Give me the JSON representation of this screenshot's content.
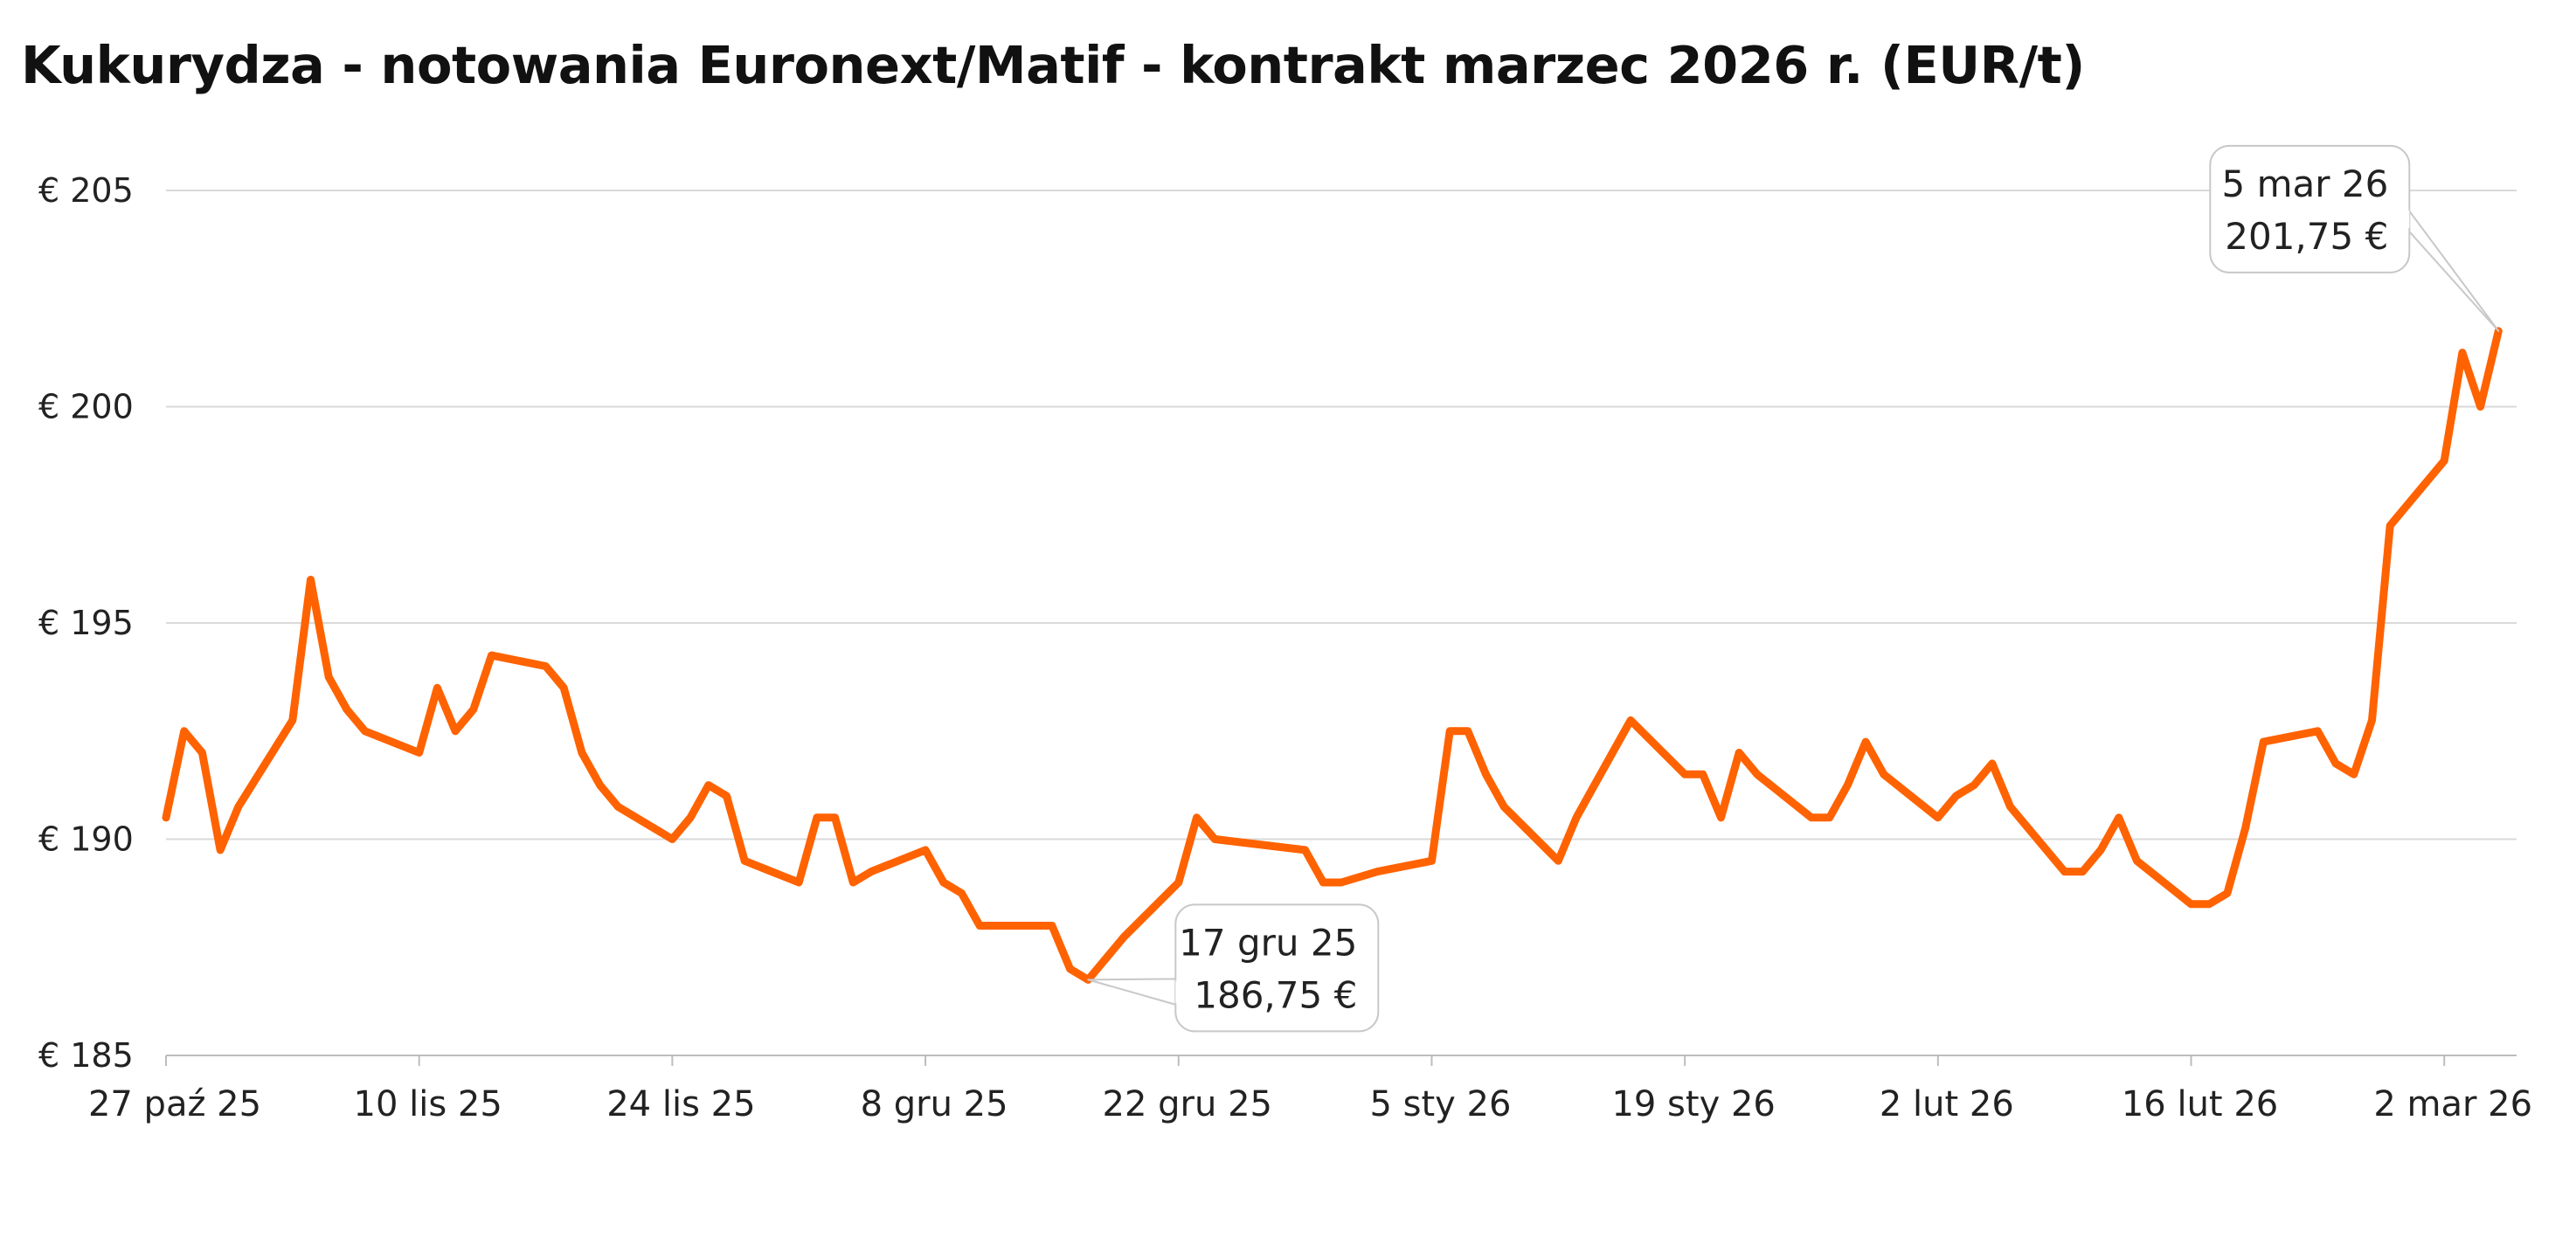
{
  "chart_data": {
    "type": "line",
    "title": "Kukurydza - notowania Euronext/Matif - kontrakt marzec 2026 r. (EUR/t)",
    "xlabel": "",
    "ylabel": "",
    "ylim": [
      185,
      205
    ],
    "yticks": [
      205,
      200,
      195,
      190,
      185
    ],
    "ytick_labels": [
      "€ 205",
      "€ 200",
      "€ 195",
      "€ 190",
      "€ 185"
    ],
    "xlim": [
      "2025-10-27",
      "2026-03-06"
    ],
    "xticks": [
      "2025-10-27",
      "2025-11-10",
      "2025-11-24",
      "2025-12-08",
      "2025-12-22",
      "2026-01-05",
      "2026-01-19",
      "2026-02-02",
      "2026-02-16",
      "2026-03-02"
    ],
    "xtick_labels": [
      "27 paź 25",
      "10 lis 25",
      "24 lis 25",
      "8 gru 25",
      "22 gru 25",
      "5 sty 26",
      "19 sty 26",
      "2 lut 26",
      "16 lut 26",
      "2 mar 26"
    ],
    "grid": true,
    "legend": "none",
    "colors": {
      "line": "#ff6200",
      "grid": "#d9d9d9",
      "axis": "#bdbdbd",
      "callout_border": "#c8c8c8"
    },
    "series": [
      {
        "x": [
          "2025-10-27",
          "2025-10-28",
          "2025-10-29",
          "2025-10-30",
          "2025-10-31",
          "2025-11-03",
          "2025-11-04",
          "2025-11-05",
          "2025-11-06",
          "2025-11-07",
          "2025-11-10",
          "2025-11-11",
          "2025-11-12",
          "2025-11-13",
          "2025-11-14",
          "2025-11-17",
          "2025-11-18",
          "2025-11-19",
          "2025-11-20",
          "2025-11-21",
          "2025-11-24",
          "2025-11-25",
          "2025-11-26",
          "2025-11-27",
          "2025-11-28",
          "2025-12-01",
          "2025-12-02",
          "2025-12-03",
          "2025-12-04",
          "2025-12-05",
          "2025-12-08",
          "2025-12-09",
          "2025-12-10",
          "2025-12-11",
          "2025-12-12",
          "2025-12-15",
          "2025-12-16",
          "2025-12-17",
          "2025-12-19",
          "2025-12-22",
          "2025-12-23",
          "2025-12-24",
          "2025-12-29",
          "2025-12-30",
          "2025-12-31",
          "2026-01-02",
          "2026-01-05",
          "2026-01-06",
          "2026-01-07",
          "2026-01-08",
          "2026-01-09",
          "2026-01-12",
          "2026-01-13",
          "2026-01-14",
          "2026-01-15",
          "2026-01-16",
          "2026-01-19",
          "2026-01-20",
          "2026-01-21",
          "2026-01-22",
          "2026-01-23",
          "2026-01-26",
          "2026-01-27",
          "2026-01-28",
          "2026-01-29",
          "2026-01-30",
          "2026-02-02",
          "2026-02-03",
          "2026-02-04",
          "2026-02-05",
          "2026-02-06",
          "2026-02-09",
          "2026-02-10",
          "2026-02-11",
          "2026-02-12",
          "2026-02-13",
          "2026-02-16",
          "2026-02-17",
          "2026-02-18",
          "2026-02-19",
          "2026-02-20",
          "2026-02-23",
          "2026-02-24",
          "2026-02-25",
          "2026-02-26",
          "2026-02-27",
          "2026-03-02",
          "2026-03-03",
          "2026-03-04",
          "2026-03-05"
        ],
        "values": [
          190.5,
          192.5,
          192.0,
          189.75,
          190.75,
          192.75,
          196.0,
          193.75,
          193.0,
          192.5,
          192.0,
          193.5,
          192.5,
          193.0,
          194.25,
          194.0,
          193.5,
          192.0,
          191.25,
          190.75,
          190.0,
          190.5,
          191.25,
          191.0,
          189.5,
          189.0,
          190.5,
          190.5,
          189.0,
          189.25,
          189.75,
          189.0,
          188.75,
          188.0,
          188.0,
          188.0,
          187.0,
          186.75,
          187.75,
          189.0,
          190.5,
          190.0,
          189.75,
          189.0,
          189.0,
          189.25,
          189.5,
          192.5,
          192.5,
          191.5,
          190.75,
          189.5,
          190.5,
          191.25,
          192.0,
          192.75,
          191.5,
          191.5,
          190.5,
          192.0,
          191.5,
          190.5,
          190.5,
          191.25,
          192.25,
          191.5,
          190.5,
          191.0,
          191.25,
          191.75,
          190.75,
          189.25,
          189.25,
          189.75,
          190.5,
          189.5,
          188.5,
          188.5,
          188.75,
          190.25,
          192.25,
          192.5,
          191.75,
          191.5,
          192.75,
          197.25,
          198.75,
          201.25,
          200.0,
          201.75
        ]
      }
    ],
    "annotations": [
      {
        "x": "2025-12-17",
        "value": 186.75,
        "line1": "17 gru 25",
        "line2": "186,75 €"
      },
      {
        "x": "2026-03-05",
        "value": 201.75,
        "line1": "5 mar 26",
        "line2": "201,75 €"
      }
    ]
  }
}
